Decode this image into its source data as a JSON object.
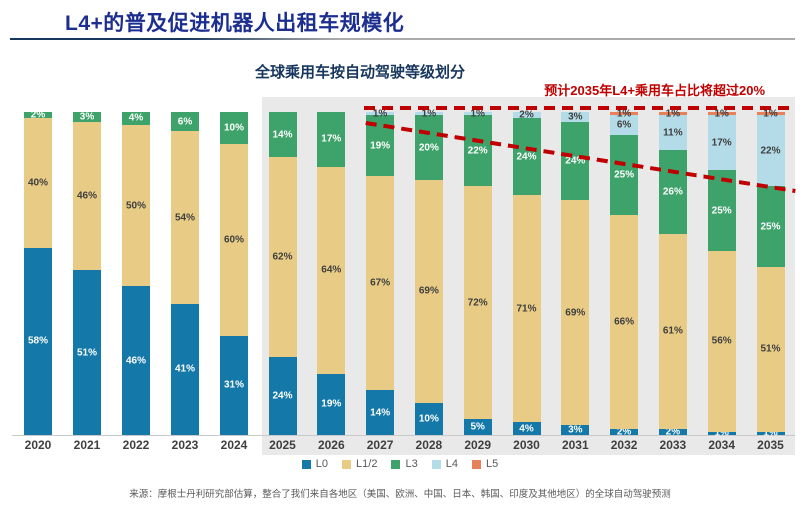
{
  "header": {
    "title": "L4+的普及促进机器人出租车规模化"
  },
  "chart": {
    "subtitle": "全球乘用车按自动驾驶等级划分",
    "annotation": "预计2035年L4+乘用车占比将超过20%",
    "source": "来源：摩根士丹利研究部估算，整合了我们来自各地区（美国、欧洲、中国、日本、韩国、印度及其他地区）的全球自动驾驶预测"
  },
  "chart_data": {
    "type": "bar",
    "stacked": true,
    "title": "全球乘用车按自动驾驶等级划分",
    "unit": "%",
    "ylim": [
      0,
      100
    ],
    "grid": false,
    "legend_position": "bottom",
    "categories": [
      "2020",
      "2021",
      "2022",
      "2023",
      "2024",
      "2025",
      "2026",
      "2027",
      "2028",
      "2029",
      "2030",
      "2031",
      "2032",
      "2033",
      "2034",
      "2035"
    ],
    "series": [
      {
        "name": "L0",
        "color": "#1478a8",
        "label_color": "#ffffff",
        "values": [
          58,
          51,
          46,
          41,
          31,
          24,
          19,
          14,
          10,
          5,
          4,
          3,
          2,
          2,
          1,
          1
        ]
      },
      {
        "name": "L1/2",
        "color": "#e8cb85",
        "label_color": "#3f3f3f",
        "values": [
          40,
          46,
          50,
          54,
          60,
          62,
          64,
          67,
          69,
          72,
          71,
          69,
          66,
          61,
          56,
          51
        ]
      },
      {
        "name": "L3",
        "color": "#3ea36a",
        "label_color": "#ffffff",
        "values": [
          2,
          3,
          4,
          6,
          10,
          14,
          17,
          19,
          20,
          22,
          24,
          24,
          25,
          26,
          25,
          25
        ]
      },
      {
        "name": "L4",
        "color": "#b3dbe8",
        "label_color": "#3f3f3f",
        "values": [
          0,
          0,
          0,
          0,
          0,
          0,
          0,
          1,
          1,
          1,
          2,
          3,
          6,
          11,
          17,
          22
        ]
      },
      {
        "name": "L5",
        "color": "#e8815a",
        "label_color": "#3f3f3f",
        "values": [
          0,
          0,
          0,
          0,
          0,
          0,
          0,
          0,
          0,
          0,
          0,
          0,
          1,
          1,
          1,
          1
        ]
      }
    ],
    "annotations": [
      {
        "type": "dashed-line",
        "orientation": "horizontal",
        "color": "#c00000"
      },
      {
        "type": "dashed-line",
        "orientation": "diagonal",
        "color": "#c00000"
      }
    ],
    "highlight_panel": {
      "from": "2025",
      "to": "2035",
      "color": "#e9e9e9"
    }
  }
}
